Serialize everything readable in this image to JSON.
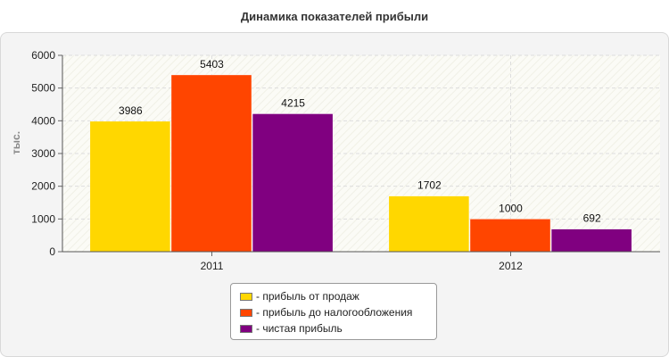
{
  "chart_data": {
    "type": "bar",
    "title": "Динамика показателей прибыли",
    "xlabel": "",
    "ylabel": "тыс.",
    "categories": [
      "2011",
      "2012"
    ],
    "ylim": [
      0,
      6000
    ],
    "yticks": [
      0,
      1000,
      2000,
      3000,
      4000,
      5000,
      6000
    ],
    "grid": true,
    "legend_position": "bottom",
    "series": [
      {
        "name": "- прибыль от продаж",
        "color": "#FFD700",
        "values": [
          3986,
          1702
        ]
      },
      {
        "name": "- прибыль до налогообложения",
        "color": "#FF4500",
        "values": [
          5403,
          1000
        ]
      },
      {
        "name": "- чистая прибыль",
        "color": "#800080",
        "values": [
          4215,
          692
        ]
      }
    ]
  }
}
